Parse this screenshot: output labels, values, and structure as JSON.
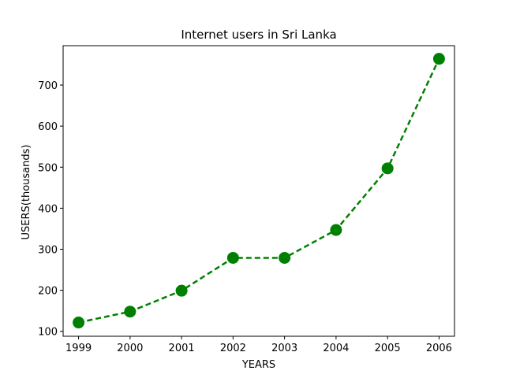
{
  "chart_data": {
    "type": "line",
    "title": "Internet users in Sri Lanka",
    "xlabel": "YEARS",
    "ylabel": "USERS(thousands)",
    "x": [
      "1999",
      "2000",
      "2001",
      "2002",
      "2003",
      "2004",
      "2005",
      "2006"
    ],
    "series": [
      {
        "values": [
          121.5,
          148.0,
          199.0,
          279.0,
          279.0,
          347.0,
          497.0,
          764.0
        ],
        "color": "#008000",
        "line_style": "dashed",
        "marker": "circle"
      }
    ],
    "ylim": [
      88,
      796
    ],
    "yticks": [
      100,
      200,
      300,
      400,
      500,
      600,
      700
    ],
    "grid": false,
    "legend": "none"
  }
}
